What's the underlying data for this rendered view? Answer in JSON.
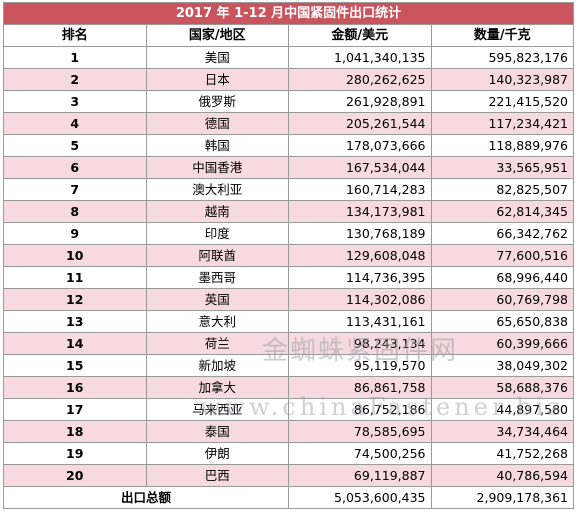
{
  "title": "2017 年 1-12 月中国紧固件出口统计",
  "headers": {
    "rank": "排名",
    "country": "国家/地区",
    "amount": "金额/美元",
    "quantity": "数量/千克"
  },
  "rows": [
    {
      "rank": "1",
      "country": "美国",
      "amount": "1,041,340,135",
      "quantity": "595,823,176"
    },
    {
      "rank": "2",
      "country": "日本",
      "amount": "280,262,625",
      "quantity": "140,323,987"
    },
    {
      "rank": "3",
      "country": "俄罗斯",
      "amount": "261,928,891",
      "quantity": "221,415,520"
    },
    {
      "rank": "4",
      "country": "德国",
      "amount": "205,261,544",
      "quantity": "117,234,421"
    },
    {
      "rank": "5",
      "country": "韩国",
      "amount": "178,073,666",
      "quantity": "118,889,976"
    },
    {
      "rank": "6",
      "country": "中国香港",
      "amount": "167,534,044",
      "quantity": "33,565,951"
    },
    {
      "rank": "7",
      "country": "澳大利亚",
      "amount": "160,714,283",
      "quantity": "82,825,507"
    },
    {
      "rank": "8",
      "country": "越南",
      "amount": "134,173,981",
      "quantity": "62,814,345"
    },
    {
      "rank": "9",
      "country": "印度",
      "amount": "130,768,189",
      "quantity": "66,342,762"
    },
    {
      "rank": "10",
      "country": "阿联酋",
      "amount": "129,608,048",
      "quantity": "77,600,516"
    },
    {
      "rank": "11",
      "country": "墨西哥",
      "amount": "114,736,395",
      "quantity": "68,996,440"
    },
    {
      "rank": "12",
      "country": "英国",
      "amount": "114,302,086",
      "quantity": "60,769,798"
    },
    {
      "rank": "13",
      "country": "意大利",
      "amount": "113,431,161",
      "quantity": "65,650,838"
    },
    {
      "rank": "14",
      "country": "荷兰",
      "amount": "98,243,134",
      "quantity": "60,399,666"
    },
    {
      "rank": "15",
      "country": "新加坡",
      "amount": "95,119,570",
      "quantity": "38,049,302"
    },
    {
      "rank": "16",
      "country": "加拿大",
      "amount": "86,861,758",
      "quantity": "58,688,376"
    },
    {
      "rank": "17",
      "country": "马来西亚",
      "amount": "86,752,186",
      "quantity": "44,897,580"
    },
    {
      "rank": "18",
      "country": "泰国",
      "amount": "78,585,695",
      "quantity": "34,734,464"
    },
    {
      "rank": "19",
      "country": "伊朗",
      "amount": "74,500,256",
      "quantity": "41,752,268"
    },
    {
      "rank": "20",
      "country": "巴西",
      "amount": "69,119,887",
      "quantity": "40,786,594"
    }
  ],
  "total": {
    "label": "出口总额",
    "amount": "5,053,600,435",
    "quantity": "2,909,178,361"
  },
  "watermark": {
    "cn": "金蜘蛛紧固件网",
    "en": "www.chinaFastener.biz"
  },
  "colors": {
    "title_bg": "#c9545e",
    "stripe": "#f6dadf"
  }
}
